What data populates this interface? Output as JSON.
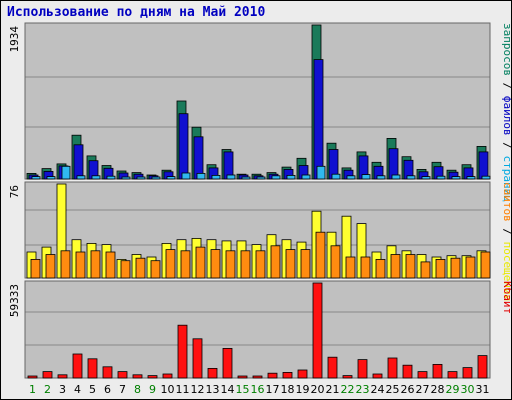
{
  "title": "Использование по дням на Май 2010",
  "chart_data": [
    {
      "type": "bar",
      "panel": "top",
      "ymax_label": "1934",
      "ylim": [
        0,
        1934
      ],
      "right_labels": [
        {
          "text": "запросов",
          "color": "#007f5f"
        },
        {
          "text": " / ",
          "color": "#000000"
        },
        {
          "text": "файлов",
          "color": "#0000c0"
        },
        {
          "text": " / ",
          "color": "#000000"
        },
        {
          "text": "страниц",
          "color": "#00a8e0"
        }
      ],
      "categories": [
        "1",
        "2",
        "3",
        "4",
        "5",
        "6",
        "7",
        "8",
        "9",
        "10",
        "11",
        "12",
        "13",
        "14",
        "15",
        "16",
        "17",
        "18",
        "19",
        "20",
        "21",
        "22",
        "23",
        "24",
        "25",
        "26",
        "27",
        "28",
        "29",
        "30",
        "31"
      ],
      "series": [
        {
          "name": "запросов",
          "color": "#1a7a5a",
          "values": [
            70,
            130,
            190,
            550,
            290,
            170,
            100,
            80,
            50,
            110,
            980,
            650,
            180,
            370,
            60,
            60,
            80,
            150,
            260,
            1934,
            450,
            140,
            340,
            210,
            510,
            280,
            120,
            210,
            110,
            180,
            410
          ]
        },
        {
          "name": "файлов",
          "color": "#1010d0",
          "values": [
            50,
            95,
            165,
            430,
            230,
            135,
            75,
            60,
            40,
            90,
            820,
            530,
            140,
            340,
            50,
            40,
            60,
            120,
            170,
            1500,
            370,
            110,
            290,
            160,
            380,
            235,
            90,
            155,
            85,
            140,
            340
          ]
        },
        {
          "name": "страниц",
          "color": "#30b8f0",
          "values": [
            30,
            30,
            160,
            40,
            40,
            35,
            25,
            20,
            20,
            30,
            75,
            70,
            45,
            50,
            25,
            20,
            40,
            45,
            50,
            160,
            60,
            40,
            55,
            40,
            50,
            40,
            30,
            35,
            30,
            30,
            35
          ]
        }
      ]
    },
    {
      "type": "bar",
      "panel": "middle",
      "ymax_label": "76",
      "ylim": [
        0,
        76
      ],
      "right_labels": [
        {
          "text": "сайтов",
          "color": "#ff7f00"
        },
        {
          "text": " / ",
          "color": "#000000"
        },
        {
          "text": "посещений",
          "color": "#e8e800"
        }
      ],
      "categories": [
        "1",
        "2",
        "3",
        "4",
        "5",
        "6",
        "7",
        "8",
        "9",
        "10",
        "11",
        "12",
        "13",
        "14",
        "15",
        "16",
        "17",
        "18",
        "19",
        "20",
        "21",
        "22",
        "23",
        "24",
        "25",
        "26",
        "27",
        "28",
        "29",
        "30",
        "31"
      ],
      "series": [
        {
          "name": "посещений",
          "color": "#ffff30",
          "values": [
            21,
            25,
            76,
            31,
            28,
            27,
            15,
            19,
            17,
            28,
            31,
            32,
            31,
            30,
            30,
            27,
            35,
            31,
            29,
            54,
            37,
            50,
            44,
            21,
            26,
            22,
            19,
            17,
            18,
            18,
            22
          ]
        },
        {
          "name": "сайтов",
          "color": "#ff8c10",
          "values": [
            15,
            19,
            22,
            21,
            22,
            21,
            14,
            16,
            14,
            23,
            22,
            25,
            23,
            22,
            22,
            22,
            26,
            23,
            23,
            37,
            26,
            17,
            17,
            15,
            19,
            19,
            13,
            15,
            16,
            17,
            21
          ]
        }
      ]
    },
    {
      "type": "bar",
      "panel": "bottom",
      "ymax_label": "59333",
      "ylim": [
        0,
        59333
      ],
      "right_labels": [
        {
          "text": "Кбайт",
          "color": "#e00000"
        }
      ],
      "categories": [
        "1",
        "2",
        "3",
        "4",
        "5",
        "6",
        "7",
        "8",
        "9",
        "10",
        "11",
        "12",
        "13",
        "14",
        "15",
        "16",
        "17",
        "18",
        "19",
        "20",
        "21",
        "22",
        "23",
        "24",
        "25",
        "26",
        "27",
        "28",
        "29",
        "30",
        "31"
      ],
      "series": [
        {
          "name": "Кбайт",
          "color": "#ff1010",
          "values": [
            1000,
            4000,
            2000,
            15000,
            12000,
            7000,
            4000,
            2000,
            1500,
            2500,
            33000,
            24500,
            6000,
            18500,
            700,
            800,
            3000,
            3500,
            5000,
            59333,
            13000,
            1500,
            11500,
            2500,
            12500,
            8000,
            4000,
            8500,
            4000,
            6500,
            14000
          ]
        }
      ]
    }
  ],
  "x_label_colors": {
    "weekday": "#000000",
    "weekend": "#008000"
  },
  "weekend_days": [
    1,
    2,
    8,
    9,
    15,
    16,
    22,
    23,
    29,
    30
  ],
  "colors": {
    "frame_bg": "#ececec",
    "plot_bg": "#c0c0c0",
    "grid": "#888888",
    "outline": "#000000"
  }
}
